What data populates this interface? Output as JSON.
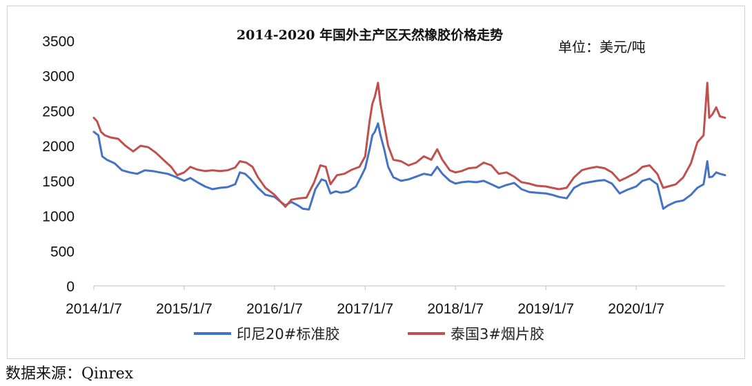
{
  "chart_data": {
    "type": "line",
    "title": "2014-2020 年国外主产区天然橡胶价格走势",
    "unit_label": "单位：美元/吨",
    "ylim": [
      0,
      3500
    ],
    "y_ticks": [
      0,
      500,
      1000,
      1500,
      2000,
      2500,
      3000,
      3500
    ],
    "x_ticks": [
      "2014/1/7",
      "2015/1/7",
      "2016/1/7",
      "2017/1/7",
      "2018/1/7",
      "2019/1/7",
      "2020/1/7"
    ],
    "xlim": [
      "2014-01-07",
      "2020-12-31"
    ],
    "grid": false,
    "legend_position": "bottom",
    "series": [
      {
        "name": "印尼20#标准胶",
        "color": "#4472c4",
        "points": [
          [
            "2014-01-07",
            2200
          ],
          [
            "2014-01-25",
            2150
          ],
          [
            "2014-02-10",
            1850
          ],
          [
            "2014-03-01",
            1800
          ],
          [
            "2014-04-01",
            1750
          ],
          [
            "2014-05-01",
            1650
          ],
          [
            "2014-06-01",
            1620
          ],
          [
            "2014-07-01",
            1600
          ],
          [
            "2014-08-01",
            1650
          ],
          [
            "2014-09-01",
            1640
          ],
          [
            "2014-10-01",
            1620
          ],
          [
            "2014-11-01",
            1600
          ],
          [
            "2014-12-01",
            1560
          ],
          [
            "2015-01-07",
            1500
          ],
          [
            "2015-02-01",
            1540
          ],
          [
            "2015-03-01",
            1480
          ],
          [
            "2015-04-01",
            1420
          ],
          [
            "2015-05-01",
            1380
          ],
          [
            "2015-06-01",
            1400
          ],
          [
            "2015-07-01",
            1410
          ],
          [
            "2015-08-01",
            1450
          ],
          [
            "2015-08-20",
            1620
          ],
          [
            "2015-09-10",
            1600
          ],
          [
            "2015-10-01",
            1530
          ],
          [
            "2015-11-01",
            1400
          ],
          [
            "2015-12-01",
            1300
          ],
          [
            "2016-01-07",
            1270
          ],
          [
            "2016-02-01",
            1200
          ],
          [
            "2016-02-20",
            1150
          ],
          [
            "2016-03-15",
            1200
          ],
          [
            "2016-04-10",
            1150
          ],
          [
            "2016-05-01",
            1100
          ],
          [
            "2016-05-25",
            1090
          ],
          [
            "2016-06-20",
            1380
          ],
          [
            "2016-07-15",
            1520
          ],
          [
            "2016-08-01",
            1500
          ],
          [
            "2016-08-20",
            1320
          ],
          [
            "2016-09-10",
            1350
          ],
          [
            "2016-10-01",
            1330
          ],
          [
            "2016-11-01",
            1350
          ],
          [
            "2016-12-01",
            1420
          ],
          [
            "2016-12-20",
            1550
          ],
          [
            "2017-01-07",
            1680
          ],
          [
            "2017-01-25",
            1950
          ],
          [
            "2017-02-05",
            2150
          ],
          [
            "2017-02-15",
            2200
          ],
          [
            "2017-02-28",
            2320
          ],
          [
            "2017-03-10",
            2150
          ],
          [
            "2017-03-25",
            1950
          ],
          [
            "2017-04-10",
            1700
          ],
          [
            "2017-05-01",
            1550
          ],
          [
            "2017-06-01",
            1500
          ],
          [
            "2017-07-01",
            1520
          ],
          [
            "2017-08-01",
            1560
          ],
          [
            "2017-09-01",
            1600
          ],
          [
            "2017-10-01",
            1580
          ],
          [
            "2017-10-25",
            1700
          ],
          [
            "2017-11-15",
            1600
          ],
          [
            "2017-12-15",
            1500
          ],
          [
            "2018-01-07",
            1460
          ],
          [
            "2018-02-01",
            1480
          ],
          [
            "2018-03-01",
            1490
          ],
          [
            "2018-04-01",
            1480
          ],
          [
            "2018-05-01",
            1500
          ],
          [
            "2018-06-01",
            1450
          ],
          [
            "2018-07-01",
            1400
          ],
          [
            "2018-08-01",
            1440
          ],
          [
            "2018-09-01",
            1470
          ],
          [
            "2018-10-01",
            1380
          ],
          [
            "2018-11-01",
            1340
          ],
          [
            "2018-12-01",
            1330
          ],
          [
            "2019-01-07",
            1320
          ],
          [
            "2019-02-01",
            1300
          ],
          [
            "2019-03-01",
            1270
          ],
          [
            "2019-04-01",
            1250
          ],
          [
            "2019-05-01",
            1400
          ],
          [
            "2019-06-01",
            1460
          ],
          [
            "2019-07-01",
            1480
          ],
          [
            "2019-08-01",
            1500
          ],
          [
            "2019-09-01",
            1510
          ],
          [
            "2019-10-01",
            1460
          ],
          [
            "2019-11-01",
            1320
          ],
          [
            "2019-12-01",
            1370
          ],
          [
            "2020-01-07",
            1420
          ],
          [
            "2020-02-01",
            1500
          ],
          [
            "2020-03-01",
            1530
          ],
          [
            "2020-04-01",
            1450
          ],
          [
            "2020-04-25",
            1100
          ],
          [
            "2020-05-15",
            1150
          ],
          [
            "2020-06-15",
            1200
          ],
          [
            "2020-07-15",
            1220
          ],
          [
            "2020-08-15",
            1300
          ],
          [
            "2020-09-10",
            1400
          ],
          [
            "2020-10-05",
            1450
          ],
          [
            "2020-10-20",
            1780
          ],
          [
            "2020-10-28",
            1550
          ],
          [
            "2020-11-10",
            1560
          ],
          [
            "2020-11-25",
            1620
          ],
          [
            "2020-12-10",
            1600
          ],
          [
            "2020-12-31",
            1580
          ]
        ]
      },
      {
        "name": "泰国3#烟片胶",
        "color": "#c0504d",
        "points": [
          [
            "2014-01-07",
            2400
          ],
          [
            "2014-01-20",
            2350
          ],
          [
            "2014-02-05",
            2200
          ],
          [
            "2014-02-20",
            2150
          ],
          [
            "2014-03-15",
            2120
          ],
          [
            "2014-04-15",
            2100
          ],
          [
            "2014-05-15",
            2000
          ],
          [
            "2014-06-15",
            1920
          ],
          [
            "2014-07-15",
            2000
          ],
          [
            "2014-08-15",
            1980
          ],
          [
            "2014-09-15",
            1900
          ],
          [
            "2014-10-15",
            1800
          ],
          [
            "2014-11-15",
            1700
          ],
          [
            "2014-12-10",
            1580
          ],
          [
            "2015-01-07",
            1620
          ],
          [
            "2015-02-01",
            1700
          ],
          [
            "2015-03-01",
            1660
          ],
          [
            "2015-04-01",
            1640
          ],
          [
            "2015-05-01",
            1650
          ],
          [
            "2015-06-01",
            1640
          ],
          [
            "2015-07-01",
            1650
          ],
          [
            "2015-08-01",
            1690
          ],
          [
            "2015-08-20",
            1780
          ],
          [
            "2015-09-15",
            1760
          ],
          [
            "2015-10-10",
            1700
          ],
          [
            "2015-11-01",
            1550
          ],
          [
            "2015-12-01",
            1400
          ],
          [
            "2016-01-07",
            1300
          ],
          [
            "2016-02-01",
            1200
          ],
          [
            "2016-02-20",
            1130
          ],
          [
            "2016-03-15",
            1230
          ],
          [
            "2016-04-15",
            1250
          ],
          [
            "2016-05-15",
            1260
          ],
          [
            "2016-06-15",
            1480
          ],
          [
            "2016-07-10",
            1720
          ],
          [
            "2016-08-01",
            1700
          ],
          [
            "2016-08-20",
            1450
          ],
          [
            "2016-09-15",
            1580
          ],
          [
            "2016-10-15",
            1600
          ],
          [
            "2016-11-15",
            1660
          ],
          [
            "2016-12-15",
            1700
          ],
          [
            "2017-01-07",
            1850
          ],
          [
            "2017-01-25",
            2350
          ],
          [
            "2017-02-05",
            2600
          ],
          [
            "2017-02-15",
            2700
          ],
          [
            "2017-02-28",
            2900
          ],
          [
            "2017-03-10",
            2600
          ],
          [
            "2017-03-25",
            2300
          ],
          [
            "2017-04-10",
            2000
          ],
          [
            "2017-05-01",
            1800
          ],
          [
            "2017-06-01",
            1780
          ],
          [
            "2017-07-01",
            1720
          ],
          [
            "2017-08-01",
            1760
          ],
          [
            "2017-09-01",
            1850
          ],
          [
            "2017-10-01",
            1800
          ],
          [
            "2017-10-25",
            1950
          ],
          [
            "2017-11-15",
            1800
          ],
          [
            "2017-12-15",
            1650
          ],
          [
            "2018-01-07",
            1620
          ],
          [
            "2018-02-01",
            1640
          ],
          [
            "2018-03-01",
            1680
          ],
          [
            "2018-04-01",
            1690
          ],
          [
            "2018-05-01",
            1760
          ],
          [
            "2018-06-01",
            1720
          ],
          [
            "2018-07-01",
            1600
          ],
          [
            "2018-08-01",
            1620
          ],
          [
            "2018-09-01",
            1560
          ],
          [
            "2018-10-01",
            1480
          ],
          [
            "2018-11-01",
            1460
          ],
          [
            "2018-12-01",
            1430
          ],
          [
            "2019-01-07",
            1420
          ],
          [
            "2019-02-01",
            1400
          ],
          [
            "2019-03-01",
            1380
          ],
          [
            "2019-04-01",
            1400
          ],
          [
            "2019-05-01",
            1550
          ],
          [
            "2019-06-01",
            1650
          ],
          [
            "2019-07-01",
            1680
          ],
          [
            "2019-08-01",
            1700
          ],
          [
            "2019-09-01",
            1680
          ],
          [
            "2019-10-01",
            1620
          ],
          [
            "2019-11-01",
            1500
          ],
          [
            "2019-12-01",
            1550
          ],
          [
            "2020-01-07",
            1620
          ],
          [
            "2020-02-01",
            1700
          ],
          [
            "2020-03-01",
            1720
          ],
          [
            "2020-04-01",
            1600
          ],
          [
            "2020-04-25",
            1400
          ],
          [
            "2020-05-15",
            1420
          ],
          [
            "2020-06-15",
            1450
          ],
          [
            "2020-07-15",
            1550
          ],
          [
            "2020-08-15",
            1750
          ],
          [
            "2020-09-10",
            2050
          ],
          [
            "2020-10-05",
            2150
          ],
          [
            "2020-10-20",
            2900
          ],
          [
            "2020-10-28",
            2400
          ],
          [
            "2020-11-10",
            2450
          ],
          [
            "2020-11-25",
            2550
          ],
          [
            "2020-12-10",
            2420
          ],
          [
            "2020-12-31",
            2400
          ]
        ]
      }
    ]
  },
  "footer": {
    "source_note": "数据来源：Qinrex"
  }
}
